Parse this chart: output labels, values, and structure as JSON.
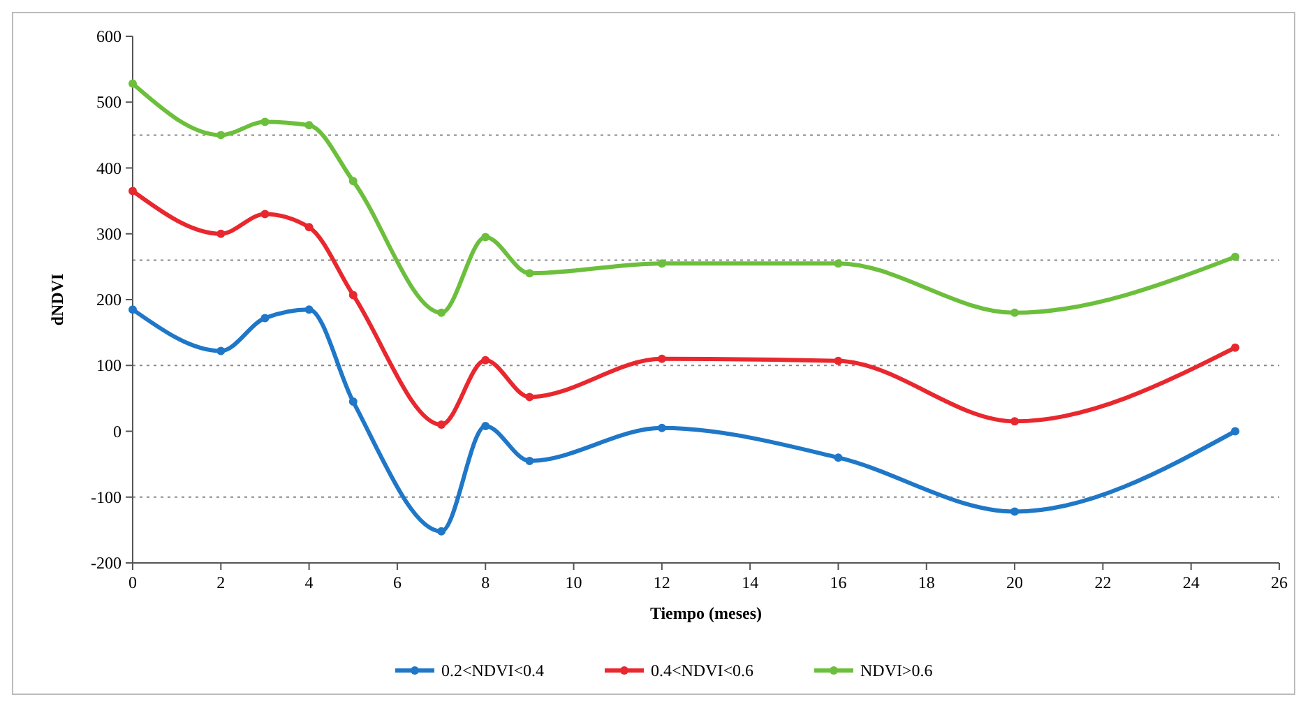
{
  "chart_data": {
    "type": "line",
    "xlabel": "Tiempo (meses)",
    "ylabel": "dNDVI",
    "x": [
      0,
      2,
      3,
      4,
      5,
      7,
      8,
      9,
      12,
      16,
      20,
      25
    ],
    "series": [
      {
        "name": "0.2<NDVI<0.4",
        "color": "#1f77c8",
        "values": [
          185,
          122,
          172,
          185,
          45,
          -152,
          8,
          -45,
          5,
          -40,
          -122,
          0
        ]
      },
      {
        "name": "0.4<NDVI<0.6",
        "color": "#e8282e",
        "values": [
          365,
          300,
          330,
          310,
          207,
          10,
          108,
          52,
          110,
          107,
          15,
          127
        ]
      },
      {
        "name": "NDVI>0.6",
        "color": "#6cbf3c",
        "values": [
          528,
          450,
          470,
          465,
          380,
          180,
          295,
          240,
          255,
          255,
          180,
          265
        ]
      }
    ],
    "xlim": [
      0,
      26
    ],
    "xticks": [
      0,
      2,
      4,
      6,
      8,
      10,
      12,
      14,
      16,
      18,
      20,
      22,
      24,
      26
    ],
    "ylim": [
      -200,
      600
    ],
    "yticks": [
      -200,
      -100,
      0,
      100,
      200,
      300,
      400,
      500,
      600
    ],
    "ref_lines": [
      {
        "axis": "y",
        "value": 450,
        "line_style": "dotted"
      },
      {
        "axis": "y",
        "value": 260,
        "line_style": "dotted"
      },
      {
        "axis": "y",
        "value": 100,
        "line_style": "dotted"
      },
      {
        "axis": "y",
        "value": -100,
        "line_style": "dotted"
      }
    ],
    "grid": false,
    "legend": "bottom",
    "marker": "circle",
    "line_style": "solid"
  }
}
